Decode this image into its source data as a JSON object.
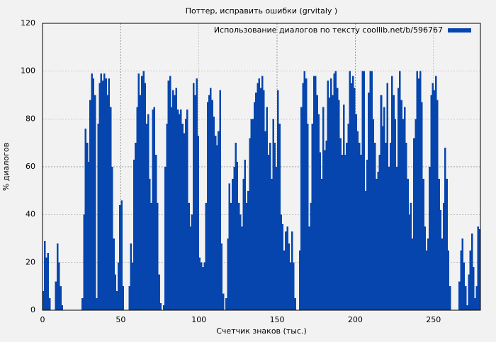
{
  "chart_data": {
    "type": "bar",
    "title": "Поттер, исправить ошибки (grvitaly )",
    "xlabel": "Счетчик знаков (тыс.)",
    "ylabel": "% диалогов",
    "series": [
      {
        "name": "Использование диалогов по тексту coollib.net/b/596767",
        "color": "#0645ad",
        "values": [
          8,
          29,
          22,
          24,
          5,
          0,
          0,
          0,
          12,
          28,
          20,
          10,
          2,
          0,
          0,
          0,
          0,
          0,
          0,
          0,
          0,
          0,
          0,
          0,
          0,
          5,
          40,
          76,
          70,
          62,
          88,
          99,
          97,
          90,
          5,
          78,
          95,
          99,
          96,
          99,
          97,
          90,
          97,
          85,
          60,
          30,
          15,
          8,
          20,
          44,
          46,
          10,
          0,
          0,
          0,
          10,
          28,
          20,
          63,
          70,
          85,
          99,
          90,
          98,
          100,
          95,
          78,
          82,
          55,
          45,
          84,
          85,
          65,
          45,
          15,
          3,
          0,
          2,
          60,
          78,
          96,
          98,
          85,
          92,
          90,
          93,
          84,
          82,
          84,
          78,
          74,
          80,
          84,
          45,
          35,
          40,
          95,
          90,
          97,
          73,
          22,
          20,
          18,
          20,
          45,
          87,
          90,
          93,
          88,
          81,
          73,
          69,
          75,
          92,
          28,
          7,
          0,
          5,
          30,
          53,
          45,
          55,
          60,
          70,
          62,
          45,
          40,
          35,
          55,
          63,
          45,
          50,
          72,
          80,
          80,
          87,
          91,
          95,
          97,
          93,
          98,
          92,
          75,
          85,
          65,
          70,
          55,
          80,
          70,
          60,
          92,
          78,
          40,
          36,
          25,
          33,
          35,
          28,
          20,
          33,
          20,
          5,
          0,
          0,
          25,
          85,
          95,
          100,
          97,
          78,
          35,
          45,
          78,
          98,
          98,
          90,
          82,
          66,
          55,
          85,
          67,
          71,
          96,
          89,
          97,
          90,
          99,
          100,
          93,
          88,
          72,
          65,
          86,
          65,
          70,
          78,
          100,
          95,
          98,
          93,
          82,
          75,
          70,
          65,
          100,
          100,
          50,
          63,
          91,
          100,
          100,
          80,
          70,
          55,
          58,
          65,
          90,
          77,
          85,
          70,
          95,
          60,
          70,
          98,
          90,
          80,
          60,
          93,
          100,
          88,
          80,
          85,
          70,
          55,
          40,
          45,
          30,
          72,
          80,
          100,
          97,
          100,
          87,
          55,
          35,
          25,
          30,
          60,
          90,
          95,
          92,
          98,
          88,
          55,
          42,
          30,
          45,
          68,
          55,
          25,
          10,
          0,
          0,
          0,
          0,
          0,
          12,
          25,
          30,
          20,
          10,
          2,
          15,
          25,
          32,
          18,
          5,
          10,
          35,
          34
        ]
      }
    ],
    "x": [
      0,
      1,
      2,
      3,
      4,
      5,
      6,
      7,
      8,
      9,
      10,
      11,
      12,
      13,
      14,
      15,
      16,
      17,
      18,
      19,
      20,
      21,
      22,
      23,
      24,
      25,
      26,
      27,
      28,
      29,
      30,
      31,
      32,
      33,
      34,
      35,
      36,
      37,
      38,
      39,
      40,
      41,
      42,
      43,
      44,
      45,
      46,
      47,
      48,
      49,
      50,
      51,
      52,
      53,
      54,
      55,
      56,
      57,
      58,
      59,
      60,
      61,
      62,
      63,
      64,
      65,
      66,
      67,
      68,
      69,
      70,
      71,
      72,
      73,
      74,
      75,
      76,
      77,
      78,
      79,
      80,
      81,
      82,
      83,
      84,
      85,
      86,
      87,
      88,
      89,
      90,
      91,
      92,
      93,
      94,
      95,
      96,
      97,
      98,
      99,
      100,
      101,
      102,
      103,
      104,
      105,
      106,
      107,
      108,
      109,
      110,
      111,
      112,
      113,
      114,
      115,
      116,
      117,
      118,
      119,
      120,
      121,
      122,
      123,
      124,
      125,
      126,
      127,
      128,
      129,
      130,
      131,
      132,
      133,
      134,
      135,
      136,
      137,
      138,
      139,
      140,
      141,
      142,
      143,
      144,
      145,
      146,
      147,
      148,
      149,
      150,
      151,
      152,
      153,
      154,
      155,
      156,
      157,
      158,
      159,
      160,
      161,
      162,
      163,
      164,
      165,
      166,
      167,
      168,
      169,
      170,
      171,
      172,
      173,
      174,
      175,
      176,
      177,
      178,
      179,
      180,
      181,
      182,
      183,
      184,
      185,
      186,
      187,
      188,
      189,
      190,
      191,
      192,
      193,
      194,
      195,
      196,
      197,
      198,
      199,
      200,
      201,
      202,
      203,
      204,
      205,
      206,
      207,
      208,
      209,
      210,
      211,
      212,
      213,
      214,
      215,
      216,
      217,
      218,
      219,
      220,
      221,
      222,
      223,
      224,
      225,
      226,
      227,
      228,
      229,
      230,
      231,
      232,
      233,
      234,
      235,
      236,
      237,
      238,
      239,
      240,
      241,
      242,
      243,
      244,
      245,
      246,
      247,
      248,
      249,
      250,
      251,
      252,
      253,
      254,
      255,
      256,
      257,
      258,
      259,
      260,
      261,
      262,
      263,
      264,
      265,
      266,
      267,
      268,
      269,
      270,
      271,
      272,
      273,
      274,
      275,
      276,
      277,
      278,
      279
    ],
    "xlim": [
      0,
      280
    ],
    "xticks": [
      0,
      50,
      100,
      150,
      200,
      250
    ],
    "ylim": [
      0,
      120
    ],
    "yticks": [
      0,
      20,
      40,
      60,
      80,
      100,
      120
    ],
    "grid": true,
    "legend": "upper right"
  }
}
